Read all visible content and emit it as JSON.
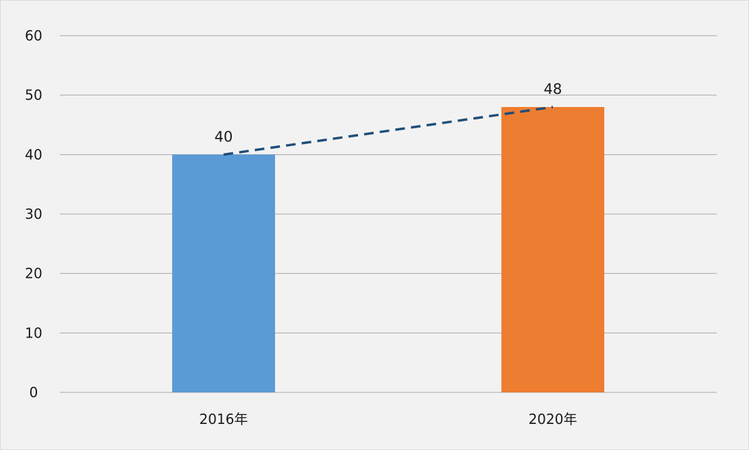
{
  "chart_data": {
    "type": "bar",
    "categories": [
      "2016年",
      "2020年"
    ],
    "values": [
      40,
      48
    ],
    "data_labels": [
      "40",
      "48"
    ],
    "colors": [
      "#5b9bd5",
      "#ed7d31"
    ],
    "trend_line": {
      "style": "dashed",
      "color": "#1f4e79"
    },
    "title": "",
    "xlabel": "",
    "ylabel": "",
    "ylim": [
      0,
      60
    ],
    "y_ticks": [
      0,
      10,
      20,
      30,
      40,
      50,
      60
    ],
    "y_tick_labels": [
      "0",
      "10",
      "20",
      "30",
      "40",
      "50",
      "60"
    ],
    "grid": true,
    "gridline_color": "#a6a6a6",
    "background": "#f2f2f2",
    "legend": "none"
  }
}
